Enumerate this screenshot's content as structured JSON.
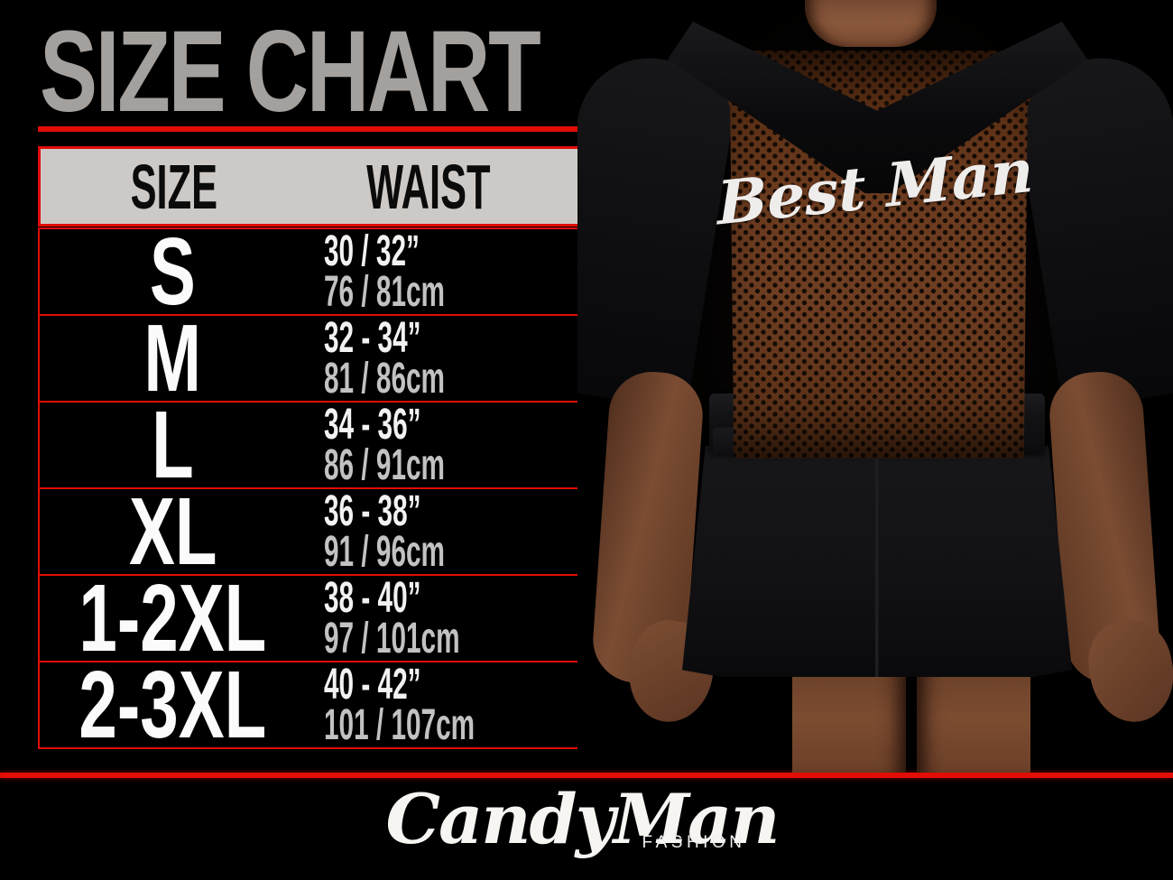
{
  "title": "SIZE CHART",
  "table": {
    "headers": {
      "size": "SIZE",
      "waist": "WAIST"
    },
    "rows": [
      {
        "size": "S",
        "waist_in": "30 / 32”",
        "waist_cm": "76 / 81cm"
      },
      {
        "size": "M",
        "waist_in": "32 - 34”",
        "waist_cm": "81 / 86cm"
      },
      {
        "size": "L",
        "waist_in": "34 - 36”",
        "waist_cm": "86 / 91cm"
      },
      {
        "size": "XL",
        "waist_in": "36 - 38”",
        "waist_cm": "91 / 96cm"
      },
      {
        "size": "1-2XL",
        "waist_in": "38 - 40”",
        "waist_cm": "97 / 101cm"
      },
      {
        "size": "2-3XL",
        "waist_in": "40 - 42”",
        "waist_cm": "101 / 107cm"
      }
    ]
  },
  "photo": {
    "garment_text": "Best Man"
  },
  "logo": {
    "brand": "CandyMan",
    "sub": "FASHION"
  },
  "colors": {
    "background": "#000000",
    "accent_red": "#e10d06",
    "title_gray": "#a4a09d",
    "header_bg": "#cdc9c6",
    "header_text": "#0b0b0b",
    "row_text_white": "#f2f2f2",
    "row_text_cm_gray": "#c2c2c2",
    "skin_tone": "#7b4c33",
    "mesh_brown": "#6b3b1f",
    "garment_black": "#121215"
  }
}
